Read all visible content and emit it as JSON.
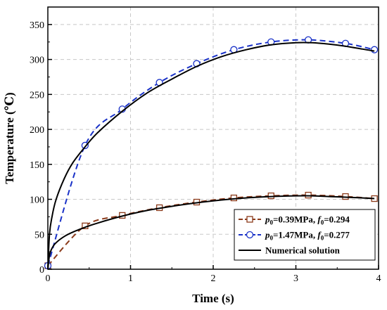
{
  "chart_data": {
    "type": "line",
    "xlabel": "Time (s)",
    "ylabel": "Temperature (℃)",
    "xlim": [
      0,
      4
    ],
    "ylim": [
      0,
      375
    ],
    "x_ticks": [
      "0",
      "1",
      "2",
      "3",
      "4"
    ],
    "y_ticks": [
      "0",
      "50",
      "100",
      "150",
      "200",
      "250",
      "300",
      "350"
    ],
    "grid": true,
    "legend_position": "bottom-right",
    "series": [
      {
        "name": "p0=0.39MPa, f0=0.294",
        "legend": {
          "p": "p",
          "p_sub": "0",
          "p_val": "=0.39MPa, ",
          "f": "f",
          "f_sub": "0",
          "f_val": "=0.294"
        },
        "kind": "markers+dashed",
        "marker": "square",
        "color": "#8b3a1a",
        "x": [
          0,
          0.45,
          0.9,
          1.35,
          1.8,
          2.25,
          2.7,
          3.15,
          3.6,
          3.95
        ],
        "y": [
          5,
          62,
          77,
          88,
          96,
          102,
          105,
          106,
          104,
          101
        ]
      },
      {
        "name": "p0=1.47MPa, f0=0.277",
        "legend": {
          "p": "p",
          "p_sub": "0",
          "p_val": "=1.47MPa, ",
          "f": "f",
          "f_sub": "0",
          "f_val": "=0.277"
        },
        "kind": "markers+dashed",
        "marker": "circle",
        "color": "#1a32c8",
        "x": [
          0,
          0.45,
          0.9,
          1.35,
          1.8,
          2.25,
          2.7,
          3.15,
          3.6,
          3.95
        ],
        "y": [
          5,
          177,
          229,
          267,
          294,
          314,
          325,
          328,
          323,
          314
        ]
      },
      {
        "name": "Numerical solution",
        "kind": "solid",
        "color": "#000000",
        "curves": [
          {
            "x": [
              0,
              0.02,
              0.05,
              0.1,
              0.2,
              0.3,
              0.45,
              0.6,
              0.9,
              1.2,
              1.5,
              1.8,
              2.1,
              2.4,
              2.7,
              3.0,
              3.2,
              3.4,
              3.6,
              3.8,
              3.95
            ],
            "y": [
              0,
              50,
              75,
              100,
              130,
              152,
              175,
              195,
              226,
              252,
              272,
              290,
              304,
              314,
              321,
              324,
              324,
              322,
              319,
              315,
              312
            ]
          },
          {
            "x": [
              0,
              0.02,
              0.05,
              0.1,
              0.2,
              0.3,
              0.45,
              0.6,
              0.9,
              1.2,
              1.5,
              1.8,
              2.1,
              2.4,
              2.7,
              3.0,
              3.2,
              3.4,
              3.6,
              3.8,
              3.95
            ],
            "y": [
              0,
              20,
              30,
              38,
              47,
              53,
              60,
              66,
              76,
              84,
              90,
              95,
              99,
              102,
              104,
              105,
              105,
              104,
              103,
              102,
              101
            ]
          }
        ]
      }
    ]
  }
}
